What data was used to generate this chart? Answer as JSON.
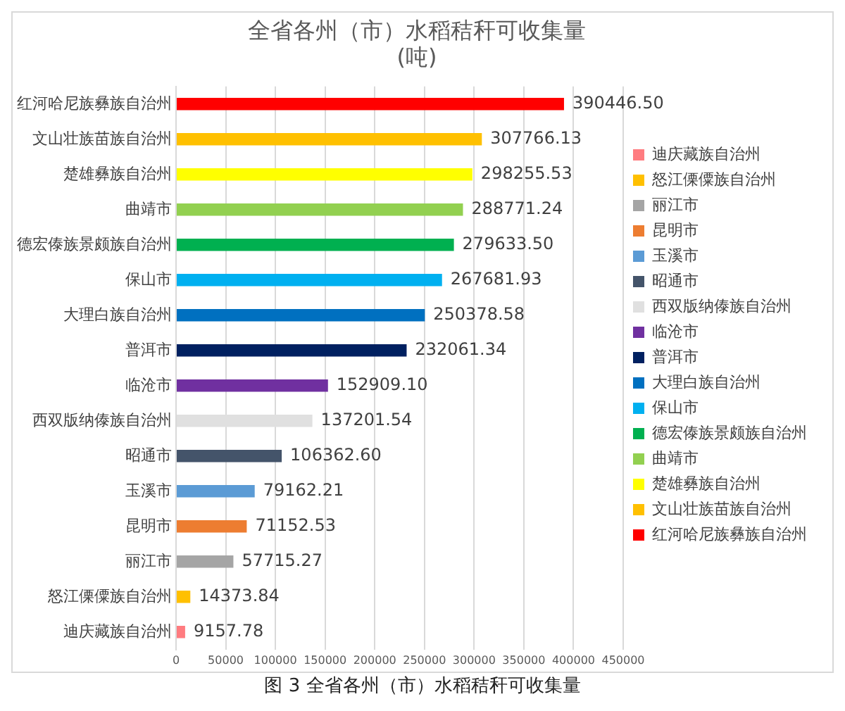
{
  "chart_data": {
    "type": "bar",
    "orientation": "horizontal",
    "title": "全省各州（市）水稻秸秆可收集量\n(吨)",
    "categories": [
      "红河哈尼族彝族自治州",
      "文山壮族苗族自治州",
      "楚雄彝族自治州",
      "曲靖市",
      "德宏傣族景颇族自治州",
      "保山市",
      "大理白族自治州",
      "普洱市",
      "临沧市",
      "西双版纳傣族自治州",
      "昭通市",
      "玉溪市",
      "昆明市",
      "丽江市",
      "怒江傈僳族自治州",
      "迪庆藏族自治州"
    ],
    "series": [
      {
        "name": "红河哈尼族彝族自治州",
        "color": "#ff0000",
        "values": [
          390446.5,
          null,
          null,
          null,
          null,
          null,
          null,
          null,
          null,
          null,
          null,
          null,
          null,
          null,
          null,
          null
        ],
        "value_labels": [
          "390446.50",
          null,
          null,
          null,
          null,
          null,
          null,
          null,
          null,
          null,
          null,
          null,
          null,
          null,
          null,
          null
        ]
      },
      {
        "name": "文山壮族苗族自治州",
        "color": "#ffc000",
        "values": [
          null,
          307766.13,
          null,
          null,
          null,
          null,
          null,
          null,
          null,
          null,
          null,
          null,
          null,
          null,
          null,
          null
        ],
        "value_labels": [
          null,
          "307766.13",
          null,
          null,
          null,
          null,
          null,
          null,
          null,
          null,
          null,
          null,
          null,
          null,
          null,
          null
        ]
      },
      {
        "name": "楚雄彝族自治州",
        "color": "#ffff00",
        "values": [
          null,
          null,
          298255.53,
          null,
          null,
          null,
          null,
          null,
          null,
          null,
          null,
          null,
          null,
          null,
          null,
          null
        ],
        "value_labels": [
          null,
          null,
          "298255.53",
          null,
          null,
          null,
          null,
          null,
          null,
          null,
          null,
          null,
          null,
          null,
          null,
          null
        ]
      },
      {
        "name": "曲靖市",
        "color": "#92d050",
        "values": [
          null,
          null,
          null,
          288771.24,
          null,
          null,
          null,
          null,
          null,
          null,
          null,
          null,
          null,
          null,
          null,
          null
        ],
        "value_labels": [
          null,
          null,
          null,
          "288771.24",
          null,
          null,
          null,
          null,
          null,
          null,
          null,
          null,
          null,
          null,
          null,
          null
        ]
      },
      {
        "name": "德宏傣族景颇族自治州",
        "color": "#00b050",
        "values": [
          null,
          null,
          null,
          null,
          279633.5,
          null,
          null,
          null,
          null,
          null,
          null,
          null,
          null,
          null,
          null,
          null
        ],
        "value_labels": [
          null,
          null,
          null,
          null,
          "279633.50",
          null,
          null,
          null,
          null,
          null,
          null,
          null,
          null,
          null,
          null,
          null
        ]
      },
      {
        "name": "保山市",
        "color": "#00b0f0",
        "values": [
          null,
          null,
          null,
          null,
          null,
          267681.93,
          null,
          null,
          null,
          null,
          null,
          null,
          null,
          null,
          null,
          null
        ],
        "value_labels": [
          null,
          null,
          null,
          null,
          null,
          "267681.93",
          null,
          null,
          null,
          null,
          null,
          null,
          null,
          null,
          null,
          null
        ]
      },
      {
        "name": "大理白族自治州",
        "color": "#0070c0",
        "values": [
          null,
          null,
          null,
          null,
          null,
          null,
          250378.58,
          null,
          null,
          null,
          null,
          null,
          null,
          null,
          null,
          null
        ],
        "value_labels": [
          null,
          null,
          null,
          null,
          null,
          null,
          "250378.58",
          null,
          null,
          null,
          null,
          null,
          null,
          null,
          null,
          null
        ]
      },
      {
        "name": "普洱市",
        "color": "#002060",
        "values": [
          null,
          null,
          null,
          null,
          null,
          null,
          null,
          232061.34,
          null,
          null,
          null,
          null,
          null,
          null,
          null,
          null
        ],
        "value_labels": [
          null,
          null,
          null,
          null,
          null,
          null,
          null,
          "232061.34",
          null,
          null,
          null,
          null,
          null,
          null,
          null,
          null
        ]
      },
      {
        "name": "临沧市",
        "color": "#7030a0",
        "values": [
          null,
          null,
          null,
          null,
          null,
          null,
          null,
          null,
          152909.1,
          null,
          null,
          null,
          null,
          null,
          null,
          null
        ],
        "value_labels": [
          null,
          null,
          null,
          null,
          null,
          null,
          null,
          null,
          "152909.10",
          null,
          null,
          null,
          null,
          null,
          null,
          null
        ]
      },
      {
        "name": "西双版纳傣族自治州",
        "color": "#e0e0e0",
        "values": [
          null,
          null,
          null,
          null,
          null,
          null,
          null,
          null,
          null,
          137201.54,
          null,
          null,
          null,
          null,
          null,
          null
        ],
        "value_labels": [
          null,
          null,
          null,
          null,
          null,
          null,
          null,
          null,
          null,
          "137201.54",
          null,
          null,
          null,
          null,
          null,
          null
        ]
      },
      {
        "name": "昭通市",
        "color": "#44546a",
        "values": [
          null,
          null,
          null,
          null,
          null,
          null,
          null,
          null,
          null,
          null,
          106362.6,
          null,
          null,
          null,
          null,
          null
        ],
        "value_labels": [
          null,
          null,
          null,
          null,
          null,
          null,
          null,
          null,
          null,
          null,
          "106362.60",
          null,
          null,
          null,
          null,
          null
        ]
      },
      {
        "name": "玉溪市",
        "color": "#5b9bd5",
        "values": [
          null,
          null,
          null,
          null,
          null,
          null,
          null,
          null,
          null,
          null,
          null,
          79162.21,
          null,
          null,
          null,
          null
        ],
        "value_labels": [
          null,
          null,
          null,
          null,
          null,
          null,
          null,
          null,
          null,
          null,
          null,
          "79162.21",
          null,
          null,
          null,
          null
        ]
      },
      {
        "name": "昆明市",
        "color": "#ed7d31",
        "values": [
          null,
          null,
          null,
          null,
          null,
          null,
          null,
          null,
          null,
          null,
          null,
          null,
          71152.53,
          null,
          null,
          null
        ],
        "value_labels": [
          null,
          null,
          null,
          null,
          null,
          null,
          null,
          null,
          null,
          null,
          null,
          null,
          "71152.53",
          null,
          null,
          null
        ]
      },
      {
        "name": "丽江市",
        "color": "#a5a5a5",
        "values": [
          null,
          null,
          null,
          null,
          null,
          null,
          null,
          null,
          null,
          null,
          null,
          null,
          null,
          57715.27,
          null,
          null
        ],
        "value_labels": [
          null,
          null,
          null,
          null,
          null,
          null,
          null,
          null,
          null,
          null,
          null,
          null,
          null,
          "57715.27",
          null,
          null
        ]
      },
      {
        "name": "怒江傈僳族自治州",
        "color": "#ffc000",
        "values": [
          null,
          null,
          null,
          null,
          null,
          null,
          null,
          null,
          null,
          null,
          null,
          null,
          null,
          null,
          14373.84,
          null
        ],
        "value_labels": [
          null,
          null,
          null,
          null,
          null,
          null,
          null,
          null,
          null,
          null,
          null,
          null,
          null,
          null,
          "14373.84",
          null
        ]
      },
      {
        "name": "迪庆藏族自治州",
        "color": "#ff7c80",
        "values": [
          null,
          null,
          null,
          null,
          null,
          null,
          null,
          null,
          null,
          null,
          null,
          null,
          null,
          null,
          null,
          9157.78
        ],
        "value_labels": [
          null,
          null,
          null,
          null,
          null,
          null,
          null,
          null,
          null,
          null,
          null,
          null,
          null,
          null,
          null,
          "9157.78"
        ]
      }
    ],
    "xlim": [
      0,
      450000
    ],
    "xticks": [
      0,
      50000,
      100000,
      150000,
      200000,
      250000,
      300000,
      350000,
      400000,
      450000
    ],
    "grid": "x",
    "legend": "right",
    "annotations": [
      "图 3 全省各州（市）水稻秸秆可收集量"
    ]
  }
}
